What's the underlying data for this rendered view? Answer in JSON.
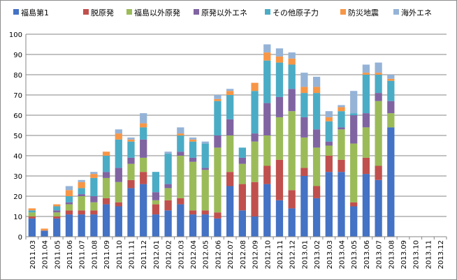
{
  "chart_data": {
    "type": "bar",
    "stacked": true,
    "title": "",
    "xlabel": "",
    "ylabel": "",
    "ylim": [
      0,
      100
    ],
    "y_ticks": [
      0,
      10,
      20,
      30,
      40,
      50,
      60,
      70,
      80,
      90,
      100
    ],
    "grid": "horizontal",
    "legend_position": "top",
    "categories": [
      "2011.03",
      "2011.04",
      "2011.05",
      "2011.06",
      "2011.07",
      "2011.08",
      "2011.09",
      "2011.10",
      "2011.11",
      "2011.12",
      "2012.01",
      "2012.02",
      "2012.03",
      "2012.04",
      "2012.05",
      "2012.06",
      "2012.07",
      "2012.08",
      "2012.09",
      "2012.10",
      "2012.11",
      "2012.12",
      "2013.01",
      "2013.02",
      "2013.03",
      "2013.04",
      "2013.05",
      "2013.06",
      "2013.07",
      "2013.08",
      "2013.09",
      "2013.10",
      "2013.11",
      "2013.12"
    ],
    "series": [
      {
        "name": "福島第1",
        "color": "#4472c4",
        "values": [
          9,
          3,
          9,
          11,
          11,
          11,
          16,
          15,
          24,
          26,
          11,
          13,
          16,
          11,
          11,
          9,
          25,
          13,
          10,
          26,
          18,
          14,
          30,
          19,
          32,
          32,
          15,
          31,
          28,
          54,
          0,
          0,
          0,
          0
        ]
      },
      {
        "name": "脱原発",
        "color": "#c0504d",
        "values": [
          1,
          0,
          1,
          2,
          2,
          2,
          3,
          2,
          4,
          6,
          5,
          5,
          3,
          2,
          2,
          3,
          7,
          13,
          17,
          9,
          20,
          9,
          4,
          6,
          8,
          6,
          2,
          8,
          7,
          0,
          0,
          0,
          0,
          0
        ]
      },
      {
        "name": "福島以外原発",
        "color": "#9bbb59",
        "values": [
          2,
          0,
          2,
          3,
          7,
          4,
          10,
          10,
          8,
          7,
          2,
          6,
          21,
          24,
          20,
          32,
          18,
          10,
          20,
          15,
          21,
          39,
          15,
          19,
          5,
          15,
          29,
          15,
          32,
          7,
          0,
          0,
          0,
          0
        ]
      },
      {
        "name": "原発以外エネ",
        "color": "#8064a2",
        "values": [
          0,
          0,
          1,
          1,
          1,
          3,
          3,
          7,
          3,
          9,
          4,
          2,
          2,
          2,
          1,
          6,
          8,
          3,
          4,
          16,
          10,
          11,
          10,
          9,
          2,
          1,
          14,
          7,
          4,
          6,
          0,
          0,
          0,
          0
        ]
      },
      {
        "name": "その他原子力",
        "color": "#4bacc6",
        "values": [
          1,
          0,
          2,
          3,
          3,
          9,
          8,
          14,
          8,
          6,
          10,
          15,
          8,
          8,
          12,
          17,
          12,
          5,
          21,
          21,
          17,
          12,
          12,
          18,
          10,
          8,
          1,
          19,
          9,
          10,
          0,
          0,
          0,
          0
        ]
      },
      {
        "name": "防災地震",
        "color": "#f79646",
        "values": [
          1,
          1,
          1,
          3,
          3,
          2,
          2,
          3,
          1,
          2,
          0,
          0,
          1,
          1,
          0,
          1,
          2,
          0,
          4,
          4,
          3,
          3,
          3,
          3,
          2,
          2,
          0,
          1,
          1,
          1,
          0,
          0,
          0,
          0
        ]
      },
      {
        "name": "海外エネ",
        "color": "#95b3d7",
        "values": [
          0,
          0,
          0,
          2,
          1,
          1,
          0,
          2,
          1,
          5,
          0,
          1,
          3,
          1,
          1,
          2,
          1,
          0,
          0,
          4,
          4,
          3,
          7,
          5,
          3,
          1,
          11,
          4,
          5,
          2,
          0,
          0,
          0,
          0
        ]
      }
    ]
  }
}
